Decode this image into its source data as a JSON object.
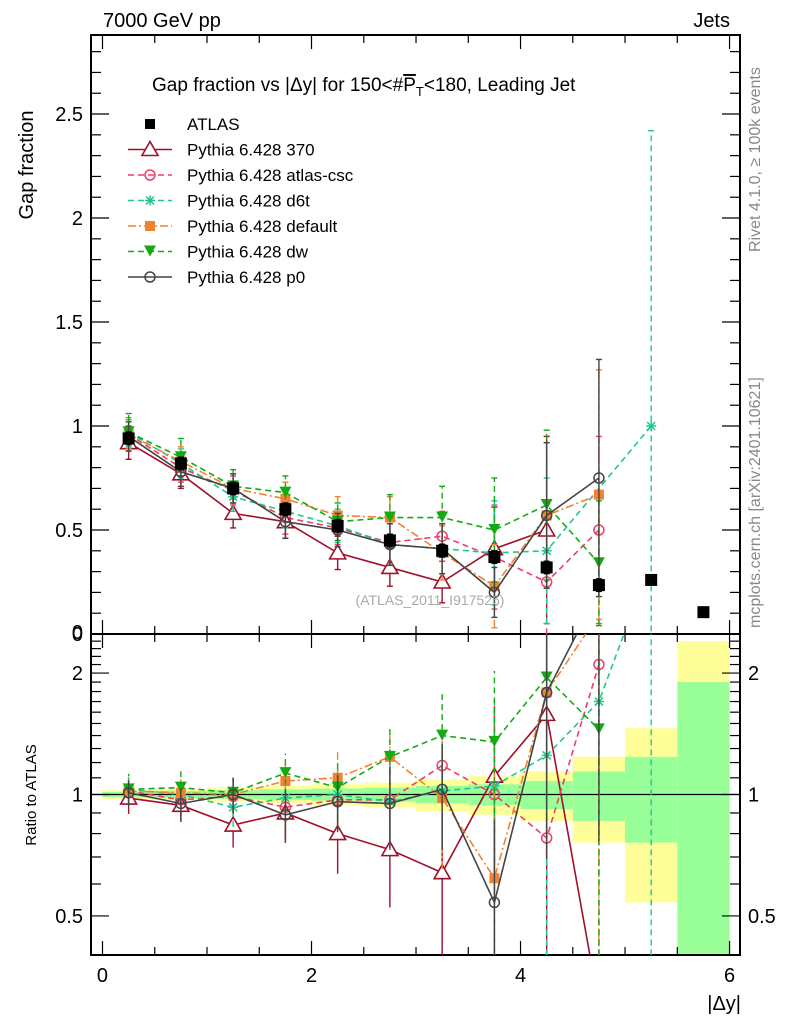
{
  "chart_data": [
    {
      "type": "line",
      "panel": "main",
      "title": "Gap fraction vs |Δy| for 150<#P̅_T<180, Leading Jet",
      "title_parts": {
        "pre": "Gap fraction vs |Δy| for 150<#",
        "P": "P",
        "T": "T",
        "post": "<180, Leading Jet"
      },
      "header_left": "7000 GeV pp",
      "header_right": "Jets",
      "xlabel": "|Δy|",
      "ylabel": "Gap fraction",
      "xlim": [
        -0.11,
        6.1
      ],
      "ylim": [
        0,
        2.88
      ],
      "yticks": [
        0,
        0.5,
        1,
        1.5,
        2,
        2.5
      ],
      "ytick_labels": [
        "0",
        "0.5",
        "1",
        "1.5",
        "2",
        "2.5"
      ],
      "watermark": "(ATLAS_2011_I917526)",
      "legend_position": "top-left",
      "x": [
        0.25,
        0.75,
        1.25,
        1.75,
        2.25,
        2.75,
        3.25,
        3.75,
        4.25,
        4.75,
        5.25,
        5.75
      ],
      "series": [
        {
          "name": "ATLAS",
          "color": "#000000",
          "marker": "square",
          "style": "none",
          "values": [
            0.94,
            0.82,
            0.7,
            0.6,
            0.52,
            0.45,
            0.4,
            0.37,
            0.32,
            0.235,
            0.26,
            0.105
          ],
          "err": [
            0.03,
            0.03,
            0.03,
            0.03,
            0.03,
            0.03,
            0.03,
            0.03,
            0.03,
            0.03,
            0.02,
            0.02
          ]
        },
        {
          "name": "Pythia 6.428 370",
          "color": "#a0102a",
          "marker": "triangle-open",
          "style": "solid",
          "values": [
            0.92,
            0.77,
            0.58,
            0.54,
            0.39,
            0.32,
            0.25,
            0.41,
            0.5
          ],
          "err": [
            0.08,
            0.07,
            0.07,
            0.08,
            0.08,
            0.09,
            0.1,
            0.2,
            0.45
          ]
        },
        {
          "name": "Pythia 6.428 atlas-csc",
          "color": "#f03c64",
          "marker": "circle-open",
          "style": "dashed",
          "values": [
            0.96,
            0.8,
            0.69,
            0.56,
            0.51,
            0.44,
            0.47,
            0.37,
            0.25,
            0.5
          ],
          "err": [
            0.07,
            0.07,
            0.07,
            0.08,
            0.08,
            0.1,
            0.12,
            0.25,
            0.3,
            0.45
          ]
        },
        {
          "name": "Pythia 6.428 d6t",
          "color": "#1ec88c",
          "marker": "star",
          "style": "dashed",
          "values": [
            0.97,
            0.82,
            0.66,
            0.59,
            0.52,
            0.43,
            0.41,
            0.39,
            0.4,
            null,
            1.0
          ],
          "err": [
            0.07,
            0.07,
            0.07,
            0.08,
            0.08,
            0.1,
            0.12,
            0.25,
            0.35,
            null,
            1.42
          ]
        },
        {
          "name": "Pythia 6.428 default",
          "color": "#f08232",
          "marker": "square",
          "style": "dashdot",
          "values": [
            0.96,
            0.83,
            0.7,
            0.65,
            0.57,
            0.56,
            0.39,
            0.23,
            0.57,
            0.67
          ],
          "err": [
            0.07,
            0.07,
            0.07,
            0.08,
            0.09,
            0.1,
            0.13,
            0.2,
            0.35,
            0.6
          ]
        },
        {
          "name": "Pythia 6.428 dw",
          "color": "#14aa14",
          "marker": "triangle-down",
          "style": "dashed",
          "values": [
            0.97,
            0.85,
            0.71,
            0.68,
            0.54,
            0.56,
            0.56,
            0.5,
            0.62,
            0.34
          ],
          "err": [
            0.09,
            0.09,
            0.08,
            0.08,
            0.09,
            0.11,
            0.15,
            0.25,
            0.36,
            0.3
          ]
        },
        {
          "name": "Pythia 6.428 p0",
          "color": "#444444",
          "marker": "circle-open",
          "style": "solid",
          "values": [
            0.95,
            0.78,
            0.7,
            0.54,
            0.5,
            0.43,
            0.41,
            0.2,
            0.57,
            0.75
          ],
          "err": [
            0.07,
            0.07,
            0.07,
            0.08,
            0.08,
            0.1,
            0.12,
            0.12,
            0.35,
            0.57
          ]
        }
      ]
    },
    {
      "type": "line",
      "panel": "ratio",
      "ylabel": "Ratio to ATLAS",
      "xlabel": "|Δy|",
      "yscale": "log",
      "ylim": [
        0.4,
        2.5
      ],
      "yticks": [
        0.5,
        1,
        2
      ],
      "ytick_labels": [
        "0.5",
        "1",
        "2"
      ],
      "xticks": [
        0,
        2,
        4,
        6
      ],
      "xtick_labels": [
        "0",
        "2",
        "4",
        "6"
      ],
      "bands": {
        "bin_edges": [
          0,
          0.5,
          1.0,
          1.5,
          2.0,
          2.5,
          3.0,
          3.5,
          4.0,
          4.5,
          5.0,
          5.5,
          6.0
        ],
        "stat_half": [
          0.015,
          0.02,
          0.025,
          0.03,
          0.035,
          0.04,
          0.05,
          0.06,
          0.08,
          0.14,
          0.24,
          0.9
        ],
        "total_half": [
          0.025,
          0.03,
          0.04,
          0.05,
          0.06,
          0.07,
          0.09,
          0.11,
          0.14,
          0.24,
          0.46,
          1.4
        ]
      },
      "series": [
        {
          "name": "Pythia 6.428 370",
          "values": [
            0.98,
            0.94,
            0.84,
            0.9,
            0.8,
            0.73,
            0.64,
            1.11,
            1.58,
            0.3
          ]
        },
        {
          "name": "Pythia 6.428 atlas-csc",
          "values": [
            1.02,
            0.97,
            0.99,
            0.93,
            0.97,
            0.97,
            1.18,
            1.0,
            0.78,
            2.1
          ]
        },
        {
          "name": "Pythia 6.428 d6t",
          "values": [
            1.03,
            1.0,
            0.93,
            0.98,
            1.0,
            0.96,
            1.02,
            1.05,
            1.25,
            1.7,
            3.8
          ]
        },
        {
          "name": "Pythia 6.428 default",
          "values": [
            1.02,
            1.01,
            1.0,
            1.08,
            1.1,
            1.24,
            0.98,
            0.62,
            1.79,
            2.8
          ]
        },
        {
          "name": "Pythia 6.428 dw",
          "values": [
            1.03,
            1.04,
            1.01,
            1.13,
            1.04,
            1.24,
            1.4,
            1.35,
            1.95,
            1.45
          ]
        },
        {
          "name": "Pythia 6.428 p0",
          "values": [
            1.01,
            0.95,
            1.0,
            0.89,
            0.96,
            0.95,
            1.03,
            0.54,
            1.79,
            3.2
          ]
        }
      ]
    }
  ],
  "side_text": {
    "rivet": "Rivet 4.1.0, ≥ 100k events",
    "mcplots": "mcplots.cern.ch [arXiv:2401.10621]"
  }
}
